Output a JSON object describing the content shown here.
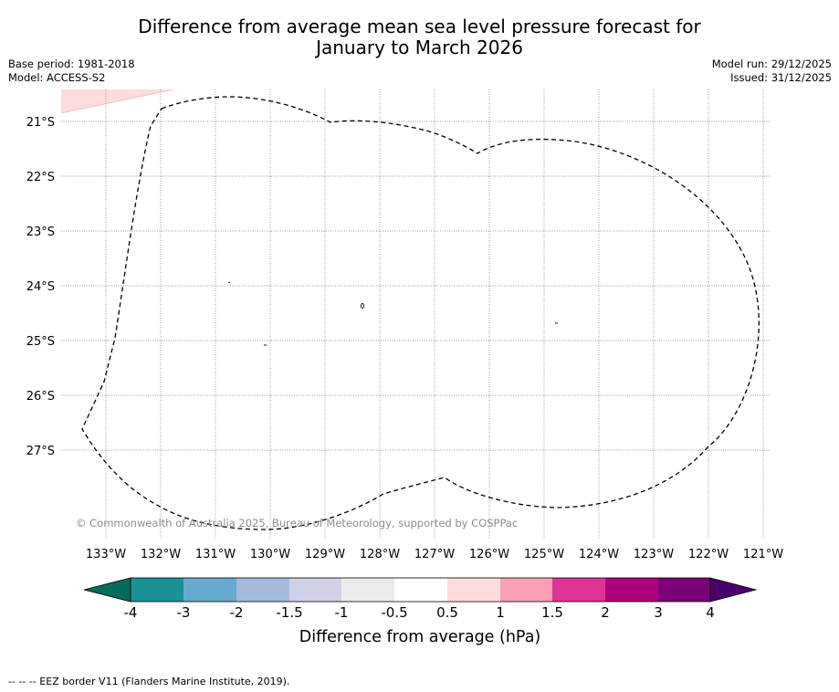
{
  "title": {
    "line1": "Difference from average mean sea level pressure forecast for",
    "line2": "January to March 2026"
  },
  "info_left": {
    "base_period": "Base period: 1981-2018",
    "model": "Model: ACCESS-S2"
  },
  "info_right": {
    "model_run": "Model run: 29/12/2025",
    "issued": "Issued: 31/12/2025"
  },
  "map": {
    "latitude_labels": [
      "21°S",
      "22°S",
      "23°S",
      "24°S",
      "25°S",
      "26°S",
      "27°S"
    ],
    "longitude_labels": [
      "133°W",
      "132°W",
      "131°W",
      "130°W",
      "129°W",
      "128°W",
      "127°W",
      "126°W",
      "125°W",
      "124°W",
      "123°W",
      "122°W",
      "121°W"
    ],
    "copyright": "© Commonwealth of Australia 2025, Bureau of Meteorology, supported by COSPPac",
    "anomaly_region_color": "#fddcdc"
  },
  "colorbar": {
    "label": "Difference from average (hPa)",
    "ticks": [
      "-4",
      "-3",
      "-2",
      "-1.5",
      "-1",
      "-0.5",
      "0.5",
      "1",
      "1.5",
      "2",
      "3",
      "4"
    ],
    "colors": [
      "#1a9196",
      "#67aad0",
      "#a6bbdb",
      "#d0d1e6",
      "#ebebee",
      "#ffffff",
      "#fddcdc",
      "#fa9fb5",
      "#dd3497",
      "#ae017e",
      "#7a0177"
    ],
    "under_color": "#016c59",
    "over_color": "#49006a"
  },
  "footer": {
    "legend_text": "--  --  -- EEZ border V11 (Flanders Marine Institute, 2019)."
  }
}
